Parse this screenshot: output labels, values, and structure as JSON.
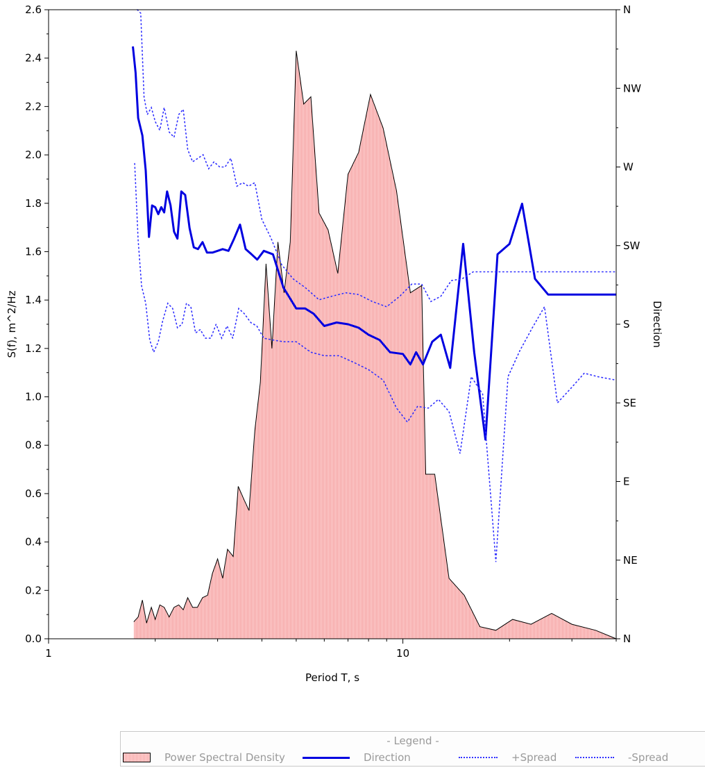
{
  "chart_data": {
    "type": "area",
    "title": "",
    "xlabel": "Period T, s",
    "ylabel": "S(f), m^2/Hz",
    "y2label": "Direction",
    "x_scale": "log",
    "xlim": [
      1,
      40
    ],
    "ylim": [
      0,
      2.6
    ],
    "x_ticks": [
      {
        "value": 1,
        "label": "1"
      },
      {
        "value": 10,
        "label": "10"
      }
    ],
    "y_ticks": [
      "0.0",
      "0.2",
      "0.4",
      "0.6",
      "0.8",
      "1.0",
      "1.2",
      "1.4",
      "1.6",
      "1.8",
      "2.0",
      "2.2",
      "2.4",
      "2.6"
    ],
    "y2_ticks": [
      "N",
      "NE",
      "E",
      "SE",
      "S",
      "SW",
      "W",
      "NW",
      "N"
    ],
    "y2lim": [
      0,
      360
    ],
    "grid": false,
    "legend_position": "bottom",
    "series": [
      {
        "name": "Power Spectral Density",
        "axis": "left",
        "style": "area",
        "color": "#f7a7a7",
        "edge_color": "#000000",
        "x": [
          1.74,
          1.79,
          1.84,
          1.89,
          1.95,
          2.0,
          2.06,
          2.12,
          2.19,
          2.26,
          2.33,
          2.4,
          2.47,
          2.55,
          2.63,
          2.72,
          2.81,
          2.9,
          3.0,
          3.1,
          3.2,
          3.32,
          3.43,
          3.55,
          3.68,
          3.82,
          3.96,
          4.11,
          4.27,
          4.44,
          4.62,
          4.81,
          5.0,
          5.25,
          5.5,
          5.8,
          6.15,
          6.55,
          7.0,
          7.5,
          8.1,
          8.8,
          9.6,
          10.5,
          11.3,
          11.6,
          12.3,
          13.5,
          14.9,
          16.5,
          18.3,
          20.4,
          23.0,
          26.3,
          30.0,
          35.0,
          40.0
        ],
        "values": [
          0.07,
          0.09,
          0.16,
          0.065,
          0.13,
          0.08,
          0.14,
          0.13,
          0.09,
          0.13,
          0.14,
          0.12,
          0.17,
          0.13,
          0.13,
          0.17,
          0.18,
          0.27,
          0.33,
          0.25,
          0.37,
          0.34,
          0.63,
          0.58,
          0.53,
          0.86,
          1.06,
          1.55,
          1.2,
          1.64,
          1.43,
          1.64,
          2.43,
          2.21,
          2.24,
          1.76,
          1.69,
          1.51,
          1.92,
          2.01,
          2.25,
          2.11,
          1.85,
          1.43,
          1.46,
          0.68,
          0.68,
          0.25,
          0.18,
          0.05,
          0.035,
          0.08,
          0.06,
          0.105,
          0.06,
          0.035,
          0.0
        ]
      },
      {
        "name": "Direction",
        "axis": "right",
        "style": "line",
        "color": "#0000e0",
        "x": [
          1.73,
          1.76,
          1.79,
          1.84,
          1.88,
          1.92,
          1.96,
          2.0,
          2.04,
          2.08,
          2.12,
          2.16,
          2.21,
          2.26,
          2.31,
          2.37,
          2.43,
          2.5,
          2.57,
          2.64,
          2.72,
          2.8,
          2.9,
          3.0,
          3.1,
          3.22,
          3.34,
          3.47,
          3.6,
          3.74,
          3.88,
          4.05,
          4.3,
          4.6,
          5.0,
          5.3,
          5.6,
          6.0,
          6.5,
          7.0,
          7.5,
          8.0,
          8.6,
          9.2,
          10.0,
          10.5,
          10.9,
          11.4,
          12.1,
          12.8,
          13.6,
          14.8,
          15.9,
          17.1,
          18.5,
          20.0,
          21.7,
          23.6,
          25.7,
          28.3,
          31.0,
          35.0,
          40.0
        ],
        "values": [
          339,
          324,
          298,
          288,
          268,
          230,
          248,
          247,
          243,
          247,
          244,
          256,
          248,
          233,
          229,
          256,
          254,
          235,
          224,
          223,
          227,
          221,
          221,
          222,
          223,
          222,
          229,
          237,
          223,
          220,
          217,
          222,
          220,
          201,
          189,
          189,
          186,
          179,
          181,
          180,
          178,
          174,
          171,
          164,
          163,
          157,
          164,
          157,
          170,
          174,
          155,
          226,
          164,
          114,
          220,
          226,
          249,
          206,
          197,
          197,
          197,
          197,
          197
        ]
      },
      {
        "name": "+Spread",
        "axis": "right",
        "style": "dotted",
        "color": "#3030ff",
        "x": [
          1.78,
          1.82,
          1.86,
          1.9,
          1.95,
          2.0,
          2.06,
          2.12,
          2.19,
          2.26,
          2.33,
          2.4,
          2.47,
          2.55,
          2.64,
          2.73,
          2.83,
          2.93,
          3.04,
          3.15,
          3.27,
          3.4,
          3.53,
          3.67,
          3.82,
          4.0,
          4.25,
          4.55,
          4.9,
          5.3,
          5.8,
          6.3,
          6.9,
          7.5,
          8.2,
          9.0,
          9.8,
          10.6,
          11.3,
          12.0,
          12.8,
          13.7,
          14.7,
          15.8,
          17.0,
          18.3,
          19.8,
          21.4,
          23.2,
          25.1,
          27.3,
          29.7,
          32.5,
          35.5,
          40.0
        ],
        "values": [
          360,
          358,
          310,
          300,
          304,
          296,
          291,
          304,
          290,
          287,
          300,
          303,
          280,
          273,
          275,
          277,
          269,
          273,
          270,
          270,
          275,
          259,
          261,
          259,
          261,
          240,
          229,
          214,
          206,
          201,
          194,
          196,
          198,
          197,
          193,
          190,
          196,
          203,
          203,
          193,
          196,
          205,
          206,
          210,
          210,
          210,
          210,
          210,
          210,
          210,
          210,
          210,
          210,
          210,
          210
        ]
      },
      {
        "name": "-Spread",
        "axis": "right",
        "style": "dotted",
        "color": "#3030ff",
        "x": [
          1.75,
          1.79,
          1.83,
          1.88,
          1.93,
          1.98,
          2.04,
          2.1,
          2.17,
          2.24,
          2.31,
          2.38,
          2.45,
          2.52,
          2.6,
          2.68,
          2.77,
          2.87,
          2.97,
          3.08,
          3.19,
          3.31,
          3.44,
          3.57,
          3.72,
          3.87,
          4.05,
          4.3,
          4.6,
          5.0,
          5.5,
          6.0,
          6.6,
          7.3,
          8.0,
          8.8,
          9.6,
          10.3,
          11.0,
          11.8,
          12.6,
          13.5,
          14.5,
          15.6,
          16.8,
          18.3,
          19.8,
          21.4,
          23.2,
          25.1,
          27.3,
          29.7,
          32.5,
          35.5,
          40.0
        ],
        "values": [
          272,
          228,
          202,
          192,
          171,
          164,
          170,
          182,
          192,
          189,
          178,
          180,
          192,
          190,
          175,
          177,
          172,
          172,
          180,
          172,
          179,
          172,
          189,
          186,
          181,
          179,
          172,
          171,
          170,
          170,
          164,
          162,
          162,
          158,
          154,
          148,
          132,
          124,
          133,
          132,
          137,
          130,
          106,
          150,
          140,
          44,
          150,
          165,
          178,
          190,
          135,
          143,
          152,
          150,
          148
        ]
      }
    ]
  },
  "legend": {
    "title": "- Legend -",
    "items": [
      {
        "label": "Power Spectral Density"
      },
      {
        "label": "Direction"
      },
      {
        "label": "+Spread"
      },
      {
        "label": "-Spread"
      }
    ]
  }
}
